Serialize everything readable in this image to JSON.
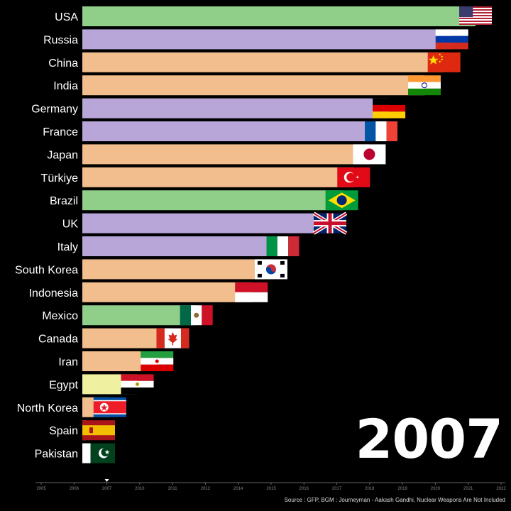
{
  "chart_data": {
    "type": "bar",
    "orientation": "horizontal",
    "year": "2007",
    "source": "Source : GFP, BGM : Journeyman - Aakash Gandhi, Nuclear Weapons Are Not Included",
    "categories": [
      "USA",
      "Russia",
      "China",
      "India",
      "Germany",
      "France",
      "Japan",
      "Türkiye",
      "Brazil",
      "UK",
      "Italy",
      "South Korea",
      "Indonesia",
      "Mexico",
      "Canada",
      "Iran",
      "Egypt",
      "North Korea",
      "Spain",
      "Pakistan"
    ],
    "values": [
      100,
      94,
      92,
      87,
      78,
      76,
      73,
      69,
      66,
      63,
      51,
      48,
      43,
      29,
      23,
      19,
      14,
      7,
      1,
      0.5
    ],
    "xlim": [
      0,
      100
    ],
    "colors": [
      "#8fcf8a",
      "#b8a6d9",
      "#f2be8e",
      "#f2be8e",
      "#b8a6d9",
      "#b8a6d9",
      "#f2be8e",
      "#f2be8e",
      "#8fcf8a",
      "#b8a6d9",
      "#b8a6d9",
      "#f2be8e",
      "#f2be8e",
      "#8fcf8a",
      "#f2be8e",
      "#f2be8e",
      "#eff0a0",
      "#f2be8e",
      "#f2be8e",
      "#8fcf8a"
    ],
    "flags": [
      "usa-flag",
      "russia-flag",
      "china-flag",
      "india-flag",
      "germany-flag",
      "france-flag",
      "japan-flag",
      "turkiye-flag",
      "brazil-flag",
      "uk-flag",
      "italy-flag",
      "south-korea-flag",
      "indonesia-flag",
      "mexico-flag",
      "canada-flag",
      "iran-flag",
      "egypt-flag",
      "north-korea-flag",
      "spain-flag",
      "pakistan-flag"
    ],
    "timeline_ticks": [
      "2005",
      "2006",
      "2007",
      "2010",
      "2011",
      "2012",
      "2014",
      "2015",
      "2016",
      "2017",
      "2018",
      "2019",
      "2020",
      "2021",
      "2022"
    ],
    "timeline_marker": "2007"
  }
}
